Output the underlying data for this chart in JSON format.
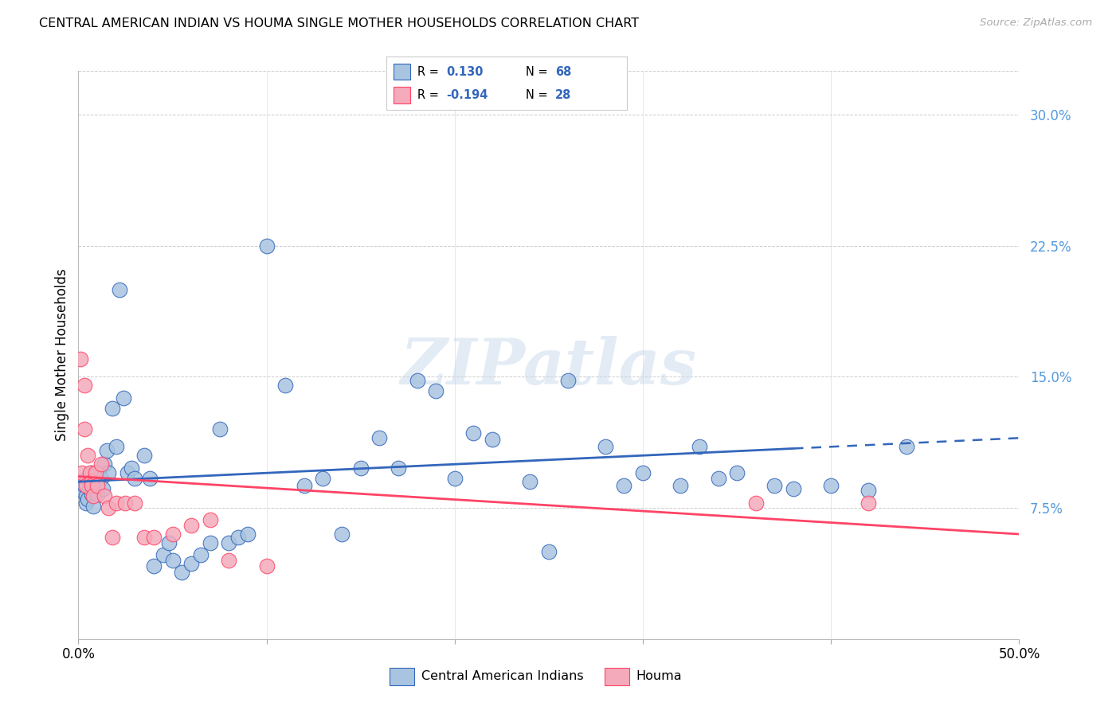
{
  "title": "CENTRAL AMERICAN INDIAN VS HOUMA SINGLE MOTHER HOUSEHOLDS CORRELATION CHART",
  "source": "Source: ZipAtlas.com",
  "ylabel": "Single Mother Households",
  "xmin": 0.0,
  "xmax": 0.5,
  "ymin": 0.0,
  "ymax": 0.325,
  "yticks": [
    0.075,
    0.15,
    0.225,
    0.3
  ],
  "ytick_labels": [
    "7.5%",
    "15.0%",
    "22.5%",
    "30.0%"
  ],
  "xticks": [
    0.0,
    0.1,
    0.2,
    0.3,
    0.4,
    0.5
  ],
  "legend_label1": "Central American Indians",
  "legend_label2": "Houma",
  "R1": 0.13,
  "N1": 68,
  "R2": -0.194,
  "N2": 28,
  "color_blue": "#A8C4E0",
  "color_pink": "#F4AABB",
  "color_blue_line": "#3366BB",
  "color_pink_line": "#FF4466",
  "watermark_text": "ZIPatlas",
  "watermark_color": "#C8D8EC",
  "background_color": "#FFFFFF",
  "grid_color": "#CCCCCC",
  "blue_x": [
    0.001,
    0.002,
    0.003,
    0.004,
    0.004,
    0.005,
    0.005,
    0.006,
    0.007,
    0.007,
    0.008,
    0.009,
    0.01,
    0.011,
    0.012,
    0.013,
    0.014,
    0.015,
    0.016,
    0.018,
    0.02,
    0.022,
    0.024,
    0.026,
    0.028,
    0.03,
    0.035,
    0.038,
    0.04,
    0.045,
    0.048,
    0.05,
    0.055,
    0.06,
    0.065,
    0.07,
    0.075,
    0.08,
    0.085,
    0.09,
    0.1,
    0.11,
    0.12,
    0.13,
    0.14,
    0.15,
    0.16,
    0.17,
    0.18,
    0.19,
    0.2,
    0.21,
    0.22,
    0.24,
    0.25,
    0.26,
    0.28,
    0.29,
    0.3,
    0.32,
    0.33,
    0.34,
    0.35,
    0.37,
    0.38,
    0.4,
    0.42,
    0.44
  ],
  "blue_y": [
    0.09,
    0.085,
    0.088,
    0.082,
    0.078,
    0.092,
    0.08,
    0.086,
    0.083,
    0.095,
    0.076,
    0.088,
    0.083,
    0.095,
    0.092,
    0.086,
    0.1,
    0.108,
    0.095,
    0.132,
    0.11,
    0.2,
    0.138,
    0.095,
    0.098,
    0.092,
    0.105,
    0.092,
    0.042,
    0.048,
    0.055,
    0.045,
    0.038,
    0.043,
    0.048,
    0.055,
    0.12,
    0.055,
    0.058,
    0.06,
    0.225,
    0.145,
    0.088,
    0.092,
    0.06,
    0.098,
    0.115,
    0.098,
    0.148,
    0.142,
    0.092,
    0.118,
    0.114,
    0.09,
    0.05,
    0.148,
    0.11,
    0.088,
    0.095,
    0.088,
    0.11,
    0.092,
    0.095,
    0.088,
    0.086,
    0.088,
    0.085,
    0.11
  ],
  "pink_x": [
    0.001,
    0.002,
    0.003,
    0.003,
    0.004,
    0.005,
    0.006,
    0.007,
    0.007,
    0.008,
    0.009,
    0.01,
    0.012,
    0.014,
    0.016,
    0.018,
    0.02,
    0.025,
    0.03,
    0.035,
    0.04,
    0.05,
    0.06,
    0.07,
    0.08,
    0.1,
    0.36,
    0.42
  ],
  "pink_y": [
    0.16,
    0.095,
    0.145,
    0.12,
    0.088,
    0.105,
    0.095,
    0.09,
    0.088,
    0.082,
    0.095,
    0.088,
    0.1,
    0.082,
    0.075,
    0.058,
    0.078,
    0.078,
    0.078,
    0.058,
    0.058,
    0.06,
    0.065,
    0.068,
    0.045,
    0.042,
    0.078,
    0.078
  ]
}
